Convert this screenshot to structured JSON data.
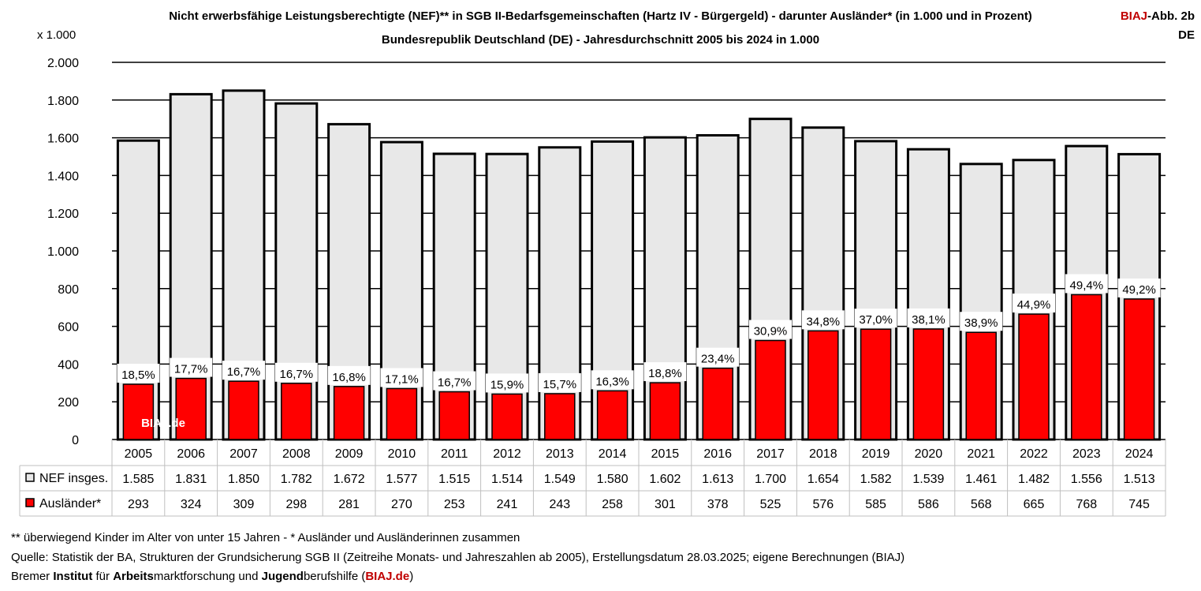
{
  "header": {
    "title_line1": "Nicht erwerbsfähige Leistungsberechtigte (NEF)** in SGB II-Bedarfsgemeinschaften (Hartz IV - Bürgergeld) - darunter Ausländer* (in 1.000 und in Prozent)",
    "title_line2": "Bundesrepublik Deutschland (DE) - Jahresdurchschnitt 2005 bis 2024 in 1.000",
    "badge_red": "BIAJ",
    "badge_rest": "-Abb. 2b",
    "badge_line2": "DE",
    "unit_label": "x 1.000"
  },
  "watermark": "BIAJ.de",
  "chart_data": {
    "type": "bar",
    "categories": [
      "2005",
      "2006",
      "2007",
      "2008",
      "2009",
      "2010",
      "2011",
      "2012",
      "2013",
      "2014",
      "2015",
      "2016",
      "2017",
      "2018",
      "2019",
      "2020",
      "2021",
      "2022",
      "2023",
      "2024"
    ],
    "series": [
      {
        "name": "NEF insges.",
        "values": [
          1585,
          1831,
          1850,
          1782,
          1672,
          1577,
          1515,
          1514,
          1549,
          1580,
          1602,
          1613,
          1700,
          1654,
          1582,
          1539,
          1461,
          1482,
          1556,
          1513
        ],
        "color": "#e8e8e8"
      },
      {
        "name": "Ausländer*",
        "values": [
          293,
          324,
          309,
          298,
          281,
          270,
          253,
          241,
          243,
          258,
          301,
          378,
          525,
          576,
          585,
          586,
          568,
          665,
          768,
          745
        ],
        "color": "#ff0000"
      }
    ],
    "percent_labels": [
      "18,5%",
      "17,7%",
      "16,7%",
      "16,7%",
      "16,8%",
      "17,1%",
      "16,7%",
      "15,9%",
      "15,7%",
      "16,3%",
      "18,8%",
      "23,4%",
      "30,9%",
      "34,8%",
      "37,0%",
      "38,1%",
      "38,9%",
      "44,9%",
      "49,4%",
      "49,2%"
    ],
    "table_nef": [
      "1.585",
      "1.831",
      "1.850",
      "1.782",
      "1.672",
      "1.577",
      "1.515",
      "1.514",
      "1.549",
      "1.580",
      "1.602",
      "1.613",
      "1.700",
      "1.654",
      "1.582",
      "1.539",
      "1.461",
      "1.482",
      "1.556",
      "1.513"
    ],
    "table_aus": [
      "293",
      "324",
      "309",
      "298",
      "281",
      "270",
      "253",
      "241",
      "243",
      "258",
      "301",
      "378",
      "525",
      "576",
      "585",
      "586",
      "568",
      "665",
      "768",
      "745"
    ],
    "ylim": [
      0,
      2000
    ],
    "yticks": [
      0,
      200,
      400,
      600,
      800,
      1000,
      1200,
      1400,
      1600,
      1800,
      2000
    ],
    "ytick_labels": [
      "0",
      "200",
      "400",
      "600",
      "800",
      "1.000",
      "1.200",
      "1.400",
      "1.600",
      "1.800",
      "2.000"
    ],
    "grid": true,
    "legend": "data-table"
  },
  "footer": {
    "note": "** überwiegend Kinder im Alter von unter 15 Jahren - * Ausländer und Ausländerinnen zusammen",
    "source": "Quelle: Statistik der BA, Strukturen der Grundsicherung SGB II (Zeitreihe Monats- und Jahreszahlen ab 2005), Erstellungsdatum 28.03.2025; eigene Berechnungen (BIAJ)",
    "org_parts": [
      {
        "text": "Bremer ",
        "bold": false
      },
      {
        "text": "Institut",
        "bold": true
      },
      {
        "text": " für ",
        "bold": false
      },
      {
        "text": "Arbeits",
        "bold": true
      },
      {
        "text": "marktforschung und ",
        "bold": false
      },
      {
        "text": "Jugend",
        "bold": true
      },
      {
        "text": "berufshilfe (",
        "bold": false
      },
      {
        "text": "BIAJ.de",
        "bold": true,
        "red": true
      },
      {
        "text": ")",
        "bold": false
      }
    ]
  }
}
